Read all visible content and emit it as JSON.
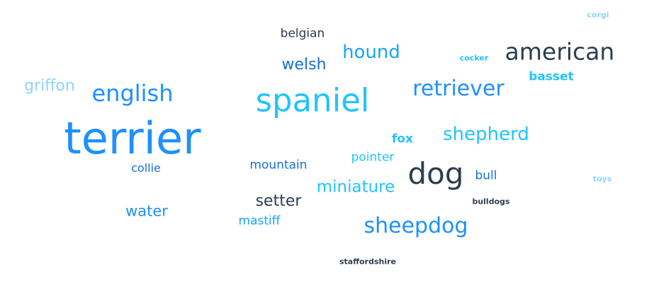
{
  "word_cloud": {
    "colors": {
      "dark": "#2c3e50",
      "blue": "#1e90ff",
      "bright_blue": "#1aa3ff",
      "cyan": "#22c3ff",
      "light_blue": "#8fd2ff",
      "deep_blue": "#1570d6"
    },
    "words": [
      {
        "text": "terrier",
        "color": "#1e90ff"
      },
      {
        "text": "spaniel",
        "color": "#22c3ff"
      },
      {
        "text": "dog",
        "color": "#2c3e50"
      },
      {
        "text": "american",
        "color": "#2c3e50"
      },
      {
        "text": "english",
        "color": "#1e90ff"
      },
      {
        "text": "retriever",
        "color": "#1e90ff"
      },
      {
        "text": "sheepdog",
        "color": "#1e90ff"
      },
      {
        "text": "shepherd",
        "color": "#22c3ff"
      },
      {
        "text": "hound",
        "color": "#1aa3ff"
      },
      {
        "text": "miniature",
        "color": "#22c3ff"
      },
      {
        "text": "griffon",
        "color": "#8fd2ff"
      },
      {
        "text": "welsh",
        "color": "#1570d6"
      },
      {
        "text": "setter",
        "color": "#2c3e50"
      },
      {
        "text": "water",
        "color": "#1e90ff"
      },
      {
        "text": "belgian",
        "color": "#2c3e50"
      },
      {
        "text": "basset",
        "color": "#22c3ff"
      },
      {
        "text": "mountain",
        "color": "#1570d6"
      },
      {
        "text": "pointer",
        "color": "#22c3ff"
      },
      {
        "text": "mastiff",
        "color": "#1aa3ff"
      },
      {
        "text": "collie",
        "color": "#1570d6"
      },
      {
        "text": "fox",
        "color": "#22c3ff"
      },
      {
        "text": "bull",
        "color": "#1570d6"
      },
      {
        "text": "cocker",
        "color": "#22c3ff"
      },
      {
        "text": "bulldogs",
        "color": "#2c3e50"
      },
      {
        "text": "staffordshire",
        "color": "#2c3e50"
      },
      {
        "text": "corgi",
        "color": "#8fd2ff"
      },
      {
        "text": "toys",
        "color": "#8fd2ff"
      }
    ]
  }
}
